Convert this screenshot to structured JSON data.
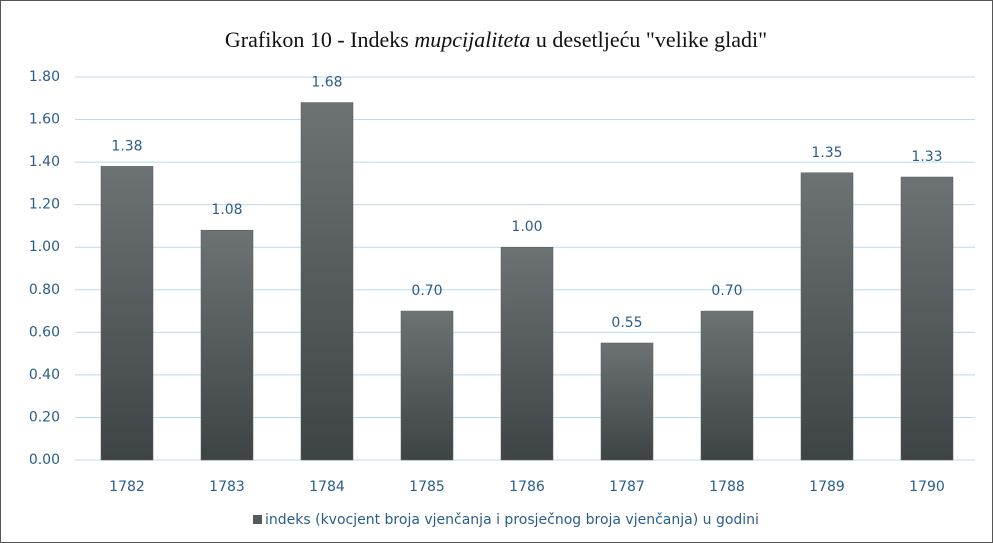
{
  "chart_data": {
    "type": "bar",
    "title": [
      "Grafikon 10 - Indeks ",
      "mupcijaliteta",
      " u desetljeću \"velike gladi\""
    ],
    "categories": [
      "1782",
      "1783",
      "1784",
      "1785",
      "1786",
      "1787",
      "1788",
      "1789",
      "1790"
    ],
    "series": [
      {
        "name": "indeks (kvocjent broja vjenčanja i prosječnog broja vjenčanja) u godini",
        "color": "#555a5c",
        "values": [
          1.38,
          1.08,
          1.68,
          0.7,
          1,
          0.55,
          0.7,
          1.35,
          1.33
        ],
        "value_labels": [
          "1.38",
          "1.08",
          "1.68",
          "0.70",
          "1.00",
          "0.55",
          "0.70",
          "1.35",
          "1.33"
        ]
      }
    ],
    "ylim": [
      0,
      1.8
    ],
    "yticks": [
      {
        "value": 0,
        "label": "0.00"
      },
      {
        "value": 0.2,
        "label": "0.20"
      },
      {
        "value": 0.4,
        "label": "0.40"
      },
      {
        "value": 0.6,
        "label": "0.60"
      },
      {
        "value": 0.8,
        "label": "0.80"
      },
      {
        "value": 1,
        "label": "1.00"
      },
      {
        "value": 1.2,
        "label": "1.20"
      },
      {
        "value": 1.4,
        "label": "1.40"
      },
      {
        "value": 1.6,
        "label": "1.60"
      },
      {
        "value": 1.8,
        "label": "1.80"
      }
    ],
    "grid": true,
    "legend": "bottom"
  }
}
